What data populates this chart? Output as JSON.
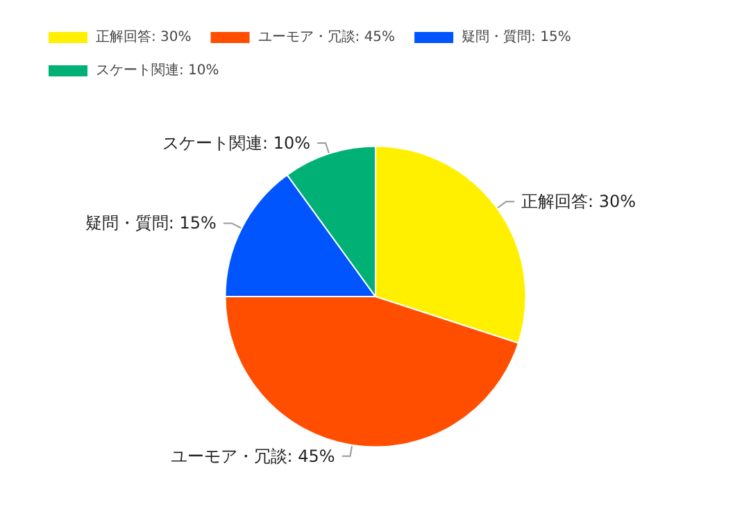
{
  "chart_data": {
    "type": "pie",
    "categories": [
      "正解回答: 30%",
      "ユーモア・冗談: 45%",
      "疑問・質問: 15%",
      "スケート関連: 10%"
    ],
    "values": [
      30,
      45,
      15,
      10
    ],
    "colors": [
      "#fff000",
      "#ff4e00",
      "#0055ff",
      "#00b074"
    ],
    "legend": "top left"
  }
}
